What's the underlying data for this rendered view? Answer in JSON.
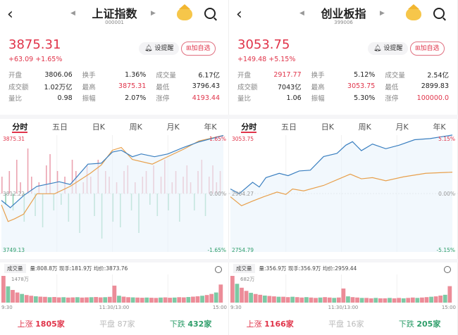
{
  "common": {
    "remind_label": "设提醒",
    "add_label": "加自选",
    "tabs": [
      "分时",
      "五日",
      "日K",
      "周K",
      "月K",
      "年K"
    ],
    "stat_labels": [
      [
        "开盘",
        "换手",
        "成交量"
      ],
      [
        "成交额",
        "最高",
        "最低"
      ],
      [
        "量比",
        "振幅",
        "涨停"
      ]
    ],
    "vol_selector": "成交量",
    "up_label": "上涨",
    "flat_label": "平盘",
    "down_label": "下跌",
    "times": [
      "9:30",
      "11:30/13:00",
      "15:00"
    ],
    "colors": {
      "up": "#e0344a",
      "down": "#2f9e6a",
      "price_line": "#3a7fc0",
      "avg_line": "#e8a04c"
    }
  },
  "panels": [
    {
      "title": "上证指数",
      "code": "000001",
      "price": "3875.31",
      "change": "+63.09",
      "change_pct": "+1.65%",
      "stats": [
        [
          "3806.06",
          "1.36%",
          "6.17亿"
        ],
        [
          "1.02万亿",
          "3875.31",
          "3796.43"
        ],
        [
          "0.98",
          "2.07%",
          "4193.44"
        ]
      ],
      "stat_colors": [
        [
          "down",
          "",
          ""
        ],
        [
          "",
          "up",
          "down"
        ],
        [
          "",
          "",
          "up"
        ]
      ],
      "vol_info": "量:808.8万 现手:181.9万 均价:3873.76",
      "up_count": "1805家",
      "flat_count": "87家",
      "down_count": "432家",
      "chart_data": {
        "type": "line",
        "ymax": "3875.31",
        "ymid": "3812.22",
        "ymin": "3749.13",
        "pmax": "1.65%",
        "pmid": "0.00%",
        "pmin": "-1.65%",
        "ylim": [
          3749.13,
          3875.31
        ],
        "prev_close": 3812.22,
        "price": [
          [
            0,
            3804.8
          ],
          [
            0.04,
            3797
          ],
          [
            0.1,
            3810
          ],
          [
            0.16,
            3820
          ],
          [
            0.26,
            3825
          ],
          [
            0.31,
            3822
          ],
          [
            0.39,
            3844
          ],
          [
            0.45,
            3845
          ],
          [
            0.5,
            3857
          ],
          [
            0.54,
            3859
          ],
          [
            0.59,
            3852
          ],
          [
            0.63,
            3855
          ],
          [
            0.69,
            3852
          ],
          [
            0.75,
            3855
          ],
          [
            0.82,
            3862
          ],
          [
            0.89,
            3868
          ],
          [
            1,
            3875
          ]
        ],
        "avg": [
          [
            0,
            3800
          ],
          [
            0.03,
            3782
          ],
          [
            0.06,
            3785
          ],
          [
            0.1,
            3790
          ],
          [
            0.16,
            3812
          ],
          [
            0.24,
            3812
          ],
          [
            0.31,
            3820
          ],
          [
            0.4,
            3834
          ],
          [
            0.45,
            3843
          ],
          [
            0.5,
            3859
          ],
          [
            0.54,
            3862
          ],
          [
            0.59,
            3849
          ],
          [
            0.68,
            3844
          ],
          [
            0.74,
            3851
          ],
          [
            0.82,
            3860
          ],
          [
            0.89,
            3869
          ],
          [
            1,
            3875
          ]
        ],
        "flow": [
          3,
          -2,
          4,
          -3,
          6,
          2,
          -5,
          8,
          3,
          -4,
          2,
          -6,
          5,
          7,
          -3,
          4,
          -2,
          3,
          -5,
          6,
          4,
          -7,
          2,
          5,
          3,
          -4,
          6,
          -8,
          4,
          3,
          -5,
          2,
          -6,
          4,
          5,
          -3,
          2,
          -7,
          3,
          4,
          -2,
          5,
          -4,
          3,
          6,
          -3,
          2,
          4,
          -5,
          3,
          5,
          2,
          -3,
          4,
          6,
          -4,
          3,
          5,
          2,
          4
        ],
        "vol_max_label": "1478万",
        "volume": [
          1478,
          900,
          700,
          560,
          480,
          420,
          380,
          350,
          330,
          320,
          300,
          310,
          290,
          300,
          280,
          290,
          300,
          280,
          290,
          300,
          310,
          290,
          300,
          320,
          940,
          380,
          330,
          300,
          290,
          280,
          270,
          280,
          270,
          260,
          280,
          290,
          270,
          280,
          300,
          290,
          310,
          330,
          350,
          380,
          420,
          480,
          560,
          1000
        ]
      }
    },
    {
      "title": "创业板指",
      "code": "399006",
      "price": "3053.75",
      "change": "+149.48",
      "change_pct": "+5.15%",
      "stats": [
        [
          "2917.77",
          "5.12%",
          "2.54亿"
        ],
        [
          "7043亿",
          "3053.75",
          "2899.83"
        ],
        [
          "1.06",
          "5.30%",
          "100000.0"
        ]
      ],
      "stat_colors": [
        [
          "up",
          "",
          ""
        ],
        [
          "",
          "up",
          "down"
        ],
        [
          "",
          "",
          "up"
        ]
      ],
      "vol_info": "量:356.9万 现手:356.9万 均价:2959.44",
      "up_count": "1166家",
      "flat_count": "16家",
      "down_count": "205家",
      "chart_data": {
        "type": "line",
        "ymax": "3053.75",
        "ymid": "2904.27",
        "ymin": "2754.79",
        "pmax": "5.15%",
        "pmid": "0.00%",
        "pmin": "-5.15%",
        "ylim": [
          2754.79,
          3053.75
        ],
        "prev_close": 2904.27,
        "price": [
          [
            0,
            2916
          ],
          [
            0.04,
            2904
          ],
          [
            0.1,
            2933
          ],
          [
            0.13,
            2921
          ],
          [
            0.16,
            2945
          ],
          [
            0.22,
            2956
          ],
          [
            0.26,
            2950
          ],
          [
            0.31,
            2962
          ],
          [
            0.36,
            2964
          ],
          [
            0.42,
            2999
          ],
          [
            0.48,
            3007
          ],
          [
            0.52,
            3028
          ],
          [
            0.55,
            3037
          ],
          [
            0.59,
            3014
          ],
          [
            0.64,
            3031
          ],
          [
            0.7,
            3019
          ],
          [
            0.76,
            3028
          ],
          [
            0.83,
            3042
          ],
          [
            0.9,
            3045
          ],
          [
            1,
            3054
          ]
        ],
        "avg": [
          [
            0,
            2896
          ],
          [
            0.05,
            2873
          ],
          [
            0.1,
            2885
          ],
          [
            0.15,
            2896
          ],
          [
            0.21,
            2908
          ],
          [
            0.25,
            2902
          ],
          [
            0.28,
            2916
          ],
          [
            0.33,
            2911
          ],
          [
            0.42,
            2925
          ],
          [
            0.49,
            2942
          ],
          [
            0.54,
            2954
          ],
          [
            0.59,
            2942
          ],
          [
            0.64,
            2945
          ],
          [
            0.7,
            2937
          ],
          [
            0.78,
            2947
          ],
          [
            0.88,
            2956
          ],
          [
            1,
            2959
          ]
        ],
        "flow": [],
        "vol_max_label": "682万",
        "volume": [
          682,
          480,
          380,
          300,
          250,
          220,
          200,
          180,
          170,
          160,
          150,
          150,
          140,
          150,
          140,
          130,
          140,
          130,
          120,
          130,
          140,
          130,
          120,
          130,
          360,
          160,
          140,
          130,
          120,
          120,
          110,
          120,
          110,
          110,
          120,
          110,
          120,
          110,
          120,
          130,
          120,
          130,
          140,
          150,
          160,
          180,
          200,
          420
        ]
      }
    }
  ]
}
